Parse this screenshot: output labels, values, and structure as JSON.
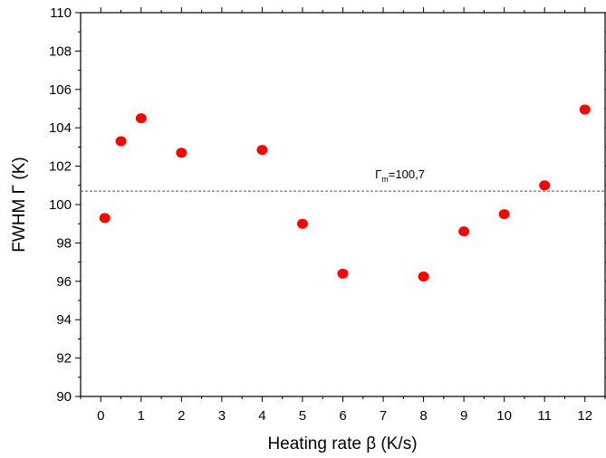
{
  "chart_data": {
    "type": "scatter",
    "title": "",
    "xlabel": "Heating rate β (K/s)",
    "ylabel": "FWHM Γ (K)",
    "xlim": [
      -0.5,
      12.5
    ],
    "ylim": [
      90,
      110
    ],
    "x_ticks": [
      0,
      1,
      2,
      3,
      4,
      5,
      6,
      7,
      8,
      9,
      10,
      11,
      12
    ],
    "y_ticks": [
      90,
      92,
      94,
      96,
      98,
      100,
      102,
      104,
      106,
      108,
      110
    ],
    "grid": false,
    "legend": "none",
    "marker_color": "#ff0000",
    "points": [
      {
        "x": 0.1,
        "y": 99.3
      },
      {
        "x": 0.5,
        "y": 103.3
      },
      {
        "x": 1,
        "y": 104.5
      },
      {
        "x": 2,
        "y": 102.7
      },
      {
        "x": 4,
        "y": 102.85
      },
      {
        "x": 5,
        "y": 99.0
      },
      {
        "x": 6,
        "y": 96.4
      },
      {
        "x": 8,
        "y": 96.25
      },
      {
        "x": 9,
        "y": 98.6
      },
      {
        "x": 10,
        "y": 99.5
      },
      {
        "x": 11,
        "y": 101.0
      },
      {
        "x": 12,
        "y": 104.95
      }
    ],
    "reference_line": {
      "y": 100.7,
      "style": "dashed",
      "label_symbol": "Γ",
      "label_subscript": "m",
      "label_value": "=100,7"
    }
  }
}
